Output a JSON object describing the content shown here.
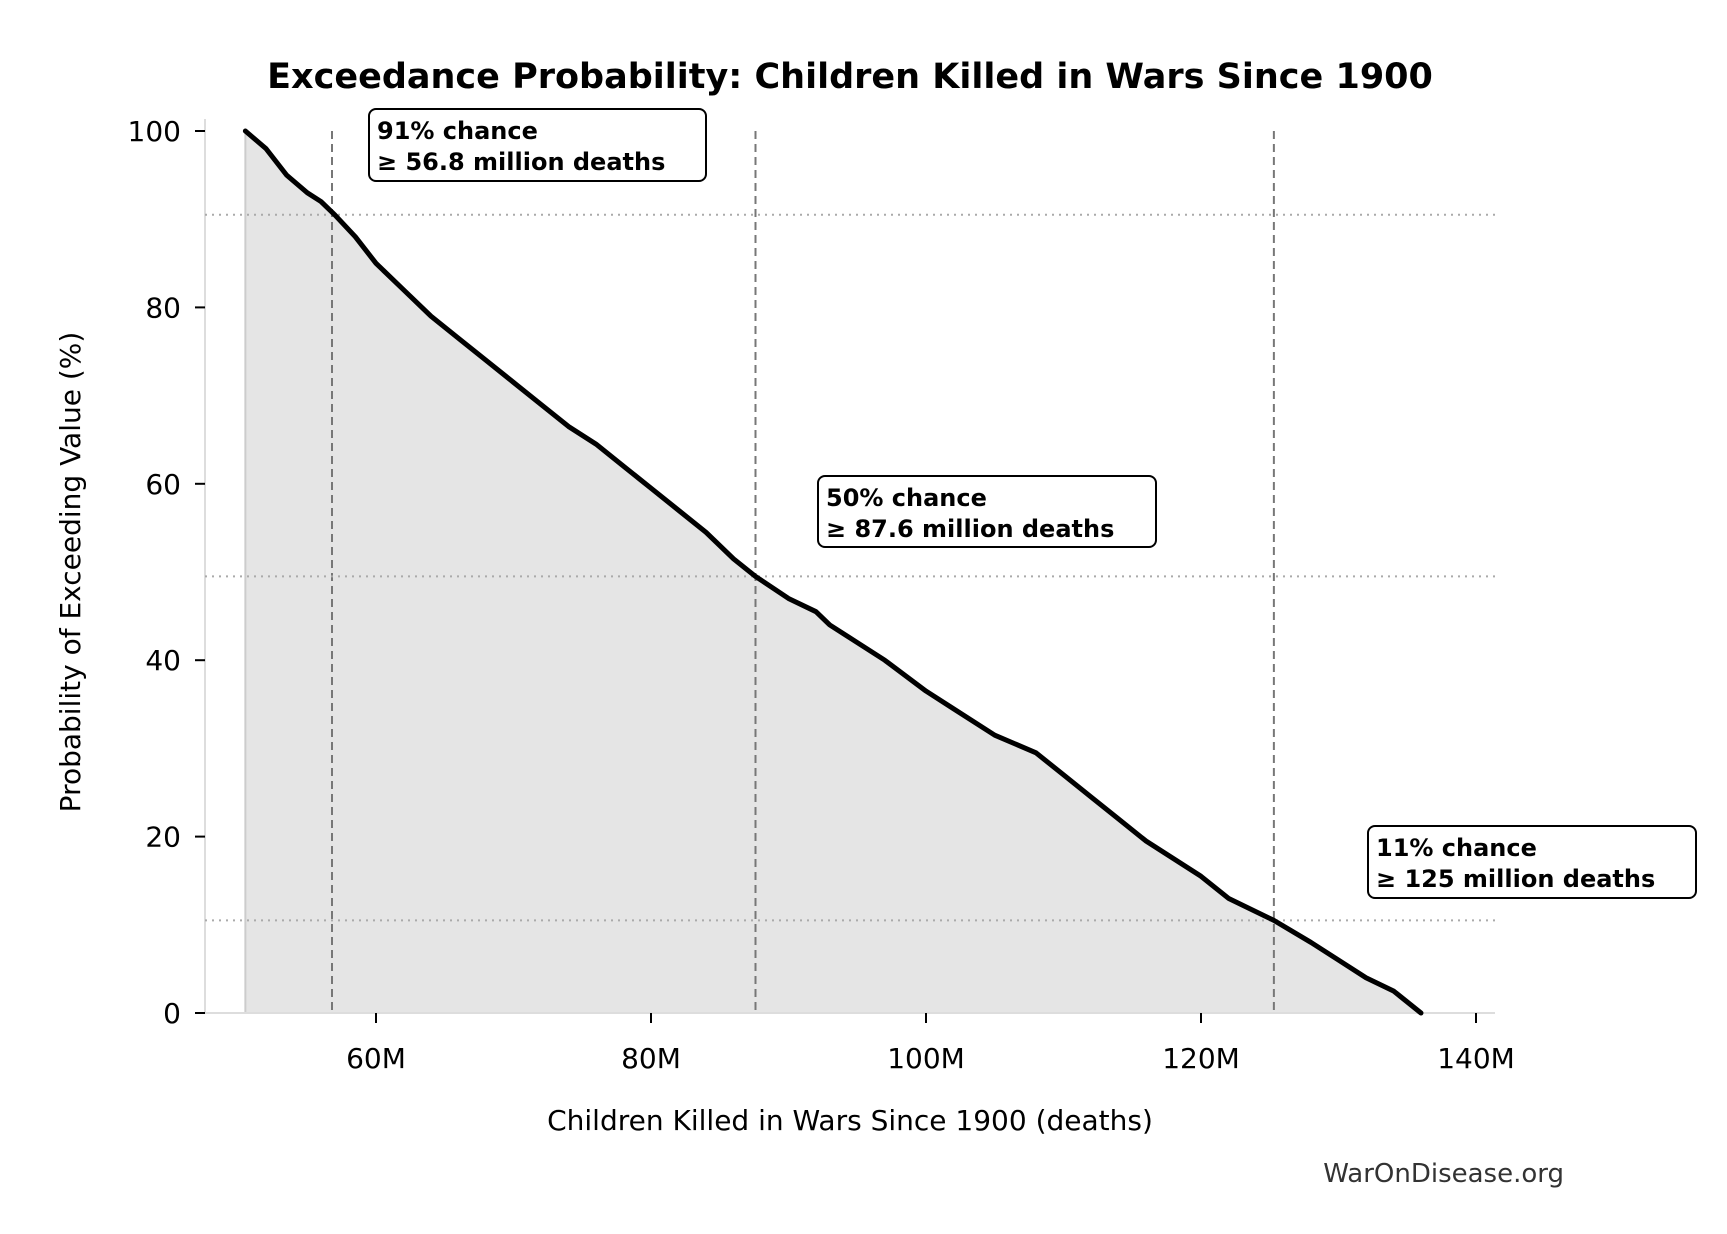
{
  "chart_data": {
    "type": "area",
    "title": "Exceedance Probability: Children Killed in Wars Since 1900",
    "xlabel": "Children Killed in Wars Since 1900 (deaths)",
    "ylabel": "Probability of Exceeding Value (%)",
    "xlim": [
      47.6,
      141.4
    ],
    "ylim": [
      0,
      100
    ],
    "x_unit": "million deaths",
    "xticks": [
      60,
      80,
      100,
      120,
      140
    ],
    "xtick_labels": [
      "60M",
      "80M",
      "100M",
      "120M",
      "140M"
    ],
    "yticks": [
      0,
      20,
      40,
      60,
      80,
      100
    ],
    "ytick_labels": [
      "0",
      "20",
      "40",
      "60",
      "80",
      "100"
    ],
    "grid": false,
    "series": [
      {
        "x": [
          50.5,
          52,
          53.5,
          55,
          56,
          57,
          58.5,
          60,
          62,
          64,
          66,
          68,
          70,
          72,
          74,
          76,
          78,
          80,
          82,
          84,
          86,
          87.6,
          90,
          92,
          93,
          95,
          97,
          100,
          102,
          105,
          108,
          110,
          112,
          114,
          116,
          118,
          120,
          122,
          125.3,
          128,
          130,
          132,
          134,
          136
        ],
        "y": [
          100,
          98,
          95,
          93,
          92,
          90.5,
          88,
          85,
          82,
          79,
          76.5,
          74,
          71.5,
          69,
          66.5,
          64.5,
          62,
          59.5,
          57,
          54.5,
          51.5,
          49.5,
          47,
          45.5,
          44,
          42,
          40,
          36.5,
          34.5,
          31.5,
          29.5,
          27,
          24.5,
          22,
          19.5,
          17.5,
          15.5,
          13,
          10.5,
          8,
          6,
          4,
          2.5,
          0
        ],
        "color": "#000000",
        "fill": "#e5e5e5"
      }
    ],
    "reference_lines": [
      {
        "x": 56.8,
        "y": 90.5
      },
      {
        "x": 87.6,
        "y": 49.5
      },
      {
        "x": 125.3,
        "y": 10.5
      }
    ],
    "annotations": [
      {
        "line1": "91% chance",
        "line2": "≥ 56.8 million deaths"
      },
      {
        "line1": "50% chance",
        "line2": "≥ 87.6 million deaths"
      },
      {
        "line1": "11% chance",
        "line2": "≥ 125 million deaths"
      }
    ],
    "watermark": "WarOnDisease.org"
  }
}
